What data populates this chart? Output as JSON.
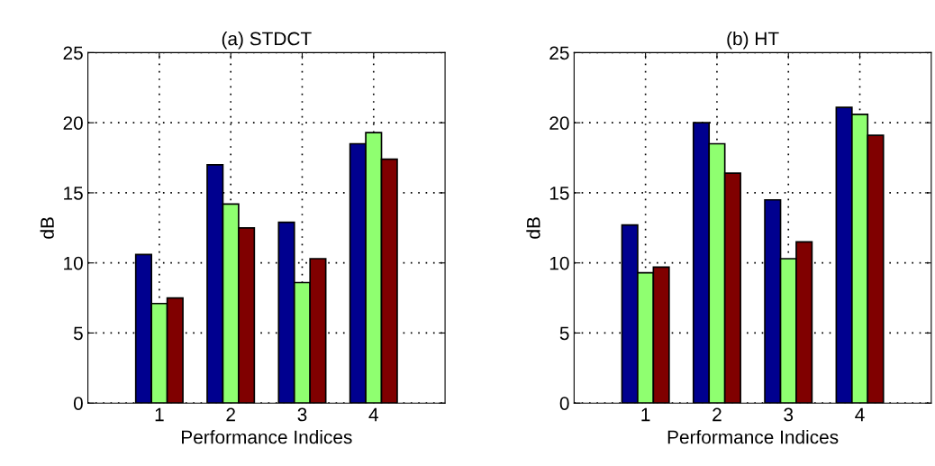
{
  "chart_data": [
    {
      "type": "bar",
      "title": "(a) STDCT",
      "xlabel": "Performance Indices",
      "ylabel": "dB",
      "categories": [
        "1",
        "2",
        "3",
        "4"
      ],
      "ylim": [
        0,
        25
      ],
      "yticks": [
        0,
        5,
        10,
        15,
        20,
        25
      ],
      "grid": true,
      "series": [
        {
          "color": "#00008f",
          "values": [
            10.6,
            17.0,
            12.9,
            18.5
          ]
        },
        {
          "color": "#8fff70",
          "values": [
            7.1,
            14.2,
            8.6,
            19.3
          ]
        },
        {
          "color": "#800000",
          "values": [
            7.5,
            12.5,
            10.3,
            17.4
          ]
        }
      ]
    },
    {
      "type": "bar",
      "title": "(b) HT",
      "xlabel": "Performance Indices",
      "ylabel": "dB",
      "categories": [
        "1",
        "2",
        "3",
        "4"
      ],
      "ylim": [
        0,
        25
      ],
      "yticks": [
        0,
        5,
        10,
        15,
        20,
        25
      ],
      "grid": true,
      "series": [
        {
          "color": "#00008f",
          "values": [
            12.7,
            20.0,
            14.5,
            21.1
          ]
        },
        {
          "color": "#8fff70",
          "values": [
            9.3,
            18.5,
            10.3,
            20.6
          ]
        },
        {
          "color": "#800000",
          "values": [
            9.7,
            16.4,
            11.5,
            19.1
          ]
        }
      ]
    }
  ]
}
